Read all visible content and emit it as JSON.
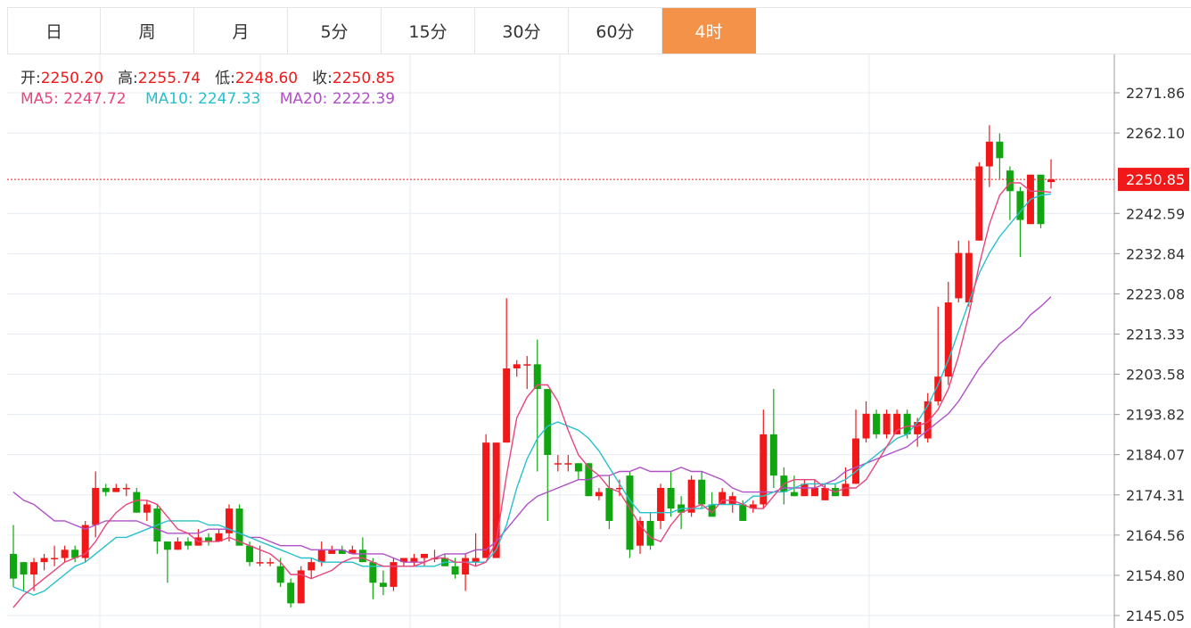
{
  "tabs": [
    {
      "label": "日",
      "active": false
    },
    {
      "label": "周",
      "active": false
    },
    {
      "label": "月",
      "active": false
    },
    {
      "label": "5分",
      "active": false
    },
    {
      "label": "15分",
      "active": false
    },
    {
      "label": "30分",
      "active": false
    },
    {
      "label": "60分",
      "active": false
    },
    {
      "label": "4时",
      "active": true
    }
  ],
  "info": {
    "open_label": "开:",
    "open": "2250.20",
    "high_label": "高:",
    "high": "2255.74",
    "low_label": "低:",
    "low": "2248.60",
    "close_label": "收:",
    "close": "2250.85",
    "ma5_label": "MA5:",
    "ma5": "2247.72",
    "ma10_label": "MA10:",
    "ma10": "2247.33",
    "ma20_label": "MA20:",
    "ma20": "2222.39"
  },
  "colors": {
    "up": "#f01818",
    "down": "#11a611",
    "ma5": "#e8457c",
    "ma10": "#28c0cc",
    "ma20": "#b04fc8",
    "grid": "#e6ecf2",
    "active_tab": "#f5924a",
    "price_tag": "#f01818"
  },
  "chart_data": {
    "type": "candlestick",
    "y_ticks": [
      "2271.86",
      "2262.10",
      "2242.59",
      "2232.84",
      "2223.08",
      "2213.33",
      "2203.58",
      "2193.82",
      "2184.07",
      "2174.31",
      "2164.56",
      "2154.80",
      "2145.05"
    ],
    "ylim": [
      2145.05,
      2276.0
    ],
    "current_price": "2250.85",
    "candles": [
      [
        2160,
        2154,
        2167,
        2152
      ],
      [
        2158,
        2155,
        2158,
        2151
      ],
      [
        2155,
        2158,
        2159,
        2151
      ],
      [
        2158,
        2159,
        2160,
        2156
      ],
      [
        2159,
        2159,
        2162,
        2157
      ],
      [
        2159,
        2161,
        2162,
        2158
      ],
      [
        2161,
        2159,
        2162,
        2158
      ],
      [
        2159,
        2167,
        2168,
        2158
      ],
      [
        2167,
        2176,
        2180,
        2164
      ],
      [
        2176,
        2175,
        2177,
        2174
      ],
      [
        2175,
        2176,
        2177,
        2175
      ],
      [
        2176,
        2176,
        2177,
        2174
      ],
      [
        2175,
        2170,
        2176,
        2170
      ],
      [
        2170,
        2172,
        2173,
        2168
      ],
      [
        2171,
        2163,
        2172,
        2160
      ],
      [
        2163,
        2161,
        2163,
        2153
      ],
      [
        2161,
        2163,
        2164,
        2161
      ],
      [
        2163,
        2162,
        2164,
        2161
      ],
      [
        2162,
        2164,
        2166,
        2162
      ],
      [
        2164,
        2163,
        2165,
        2162
      ],
      [
        2163,
        2165,
        2166,
        2163
      ],
      [
        2165,
        2171,
        2172,
        2163
      ],
      [
        2171,
        2162,
        2172,
        2162
      ],
      [
        2162,
        2158,
        2163,
        2157
      ],
      [
        2158,
        2158,
        2162,
        2157
      ],
      [
        2158,
        2158,
        2159,
        2157
      ],
      [
        2157,
        2153,
        2159,
        2152
      ],
      [
        2153,
        2148,
        2154,
        2147
      ],
      [
        2148,
        2156,
        2157,
        2148
      ],
      [
        2156,
        2158,
        2159,
        2154
      ],
      [
        2158,
        2161,
        2163,
        2157
      ],
      [
        2160,
        2161,
        2162,
        2160
      ],
      [
        2161,
        2160,
        2162,
        2160
      ],
      [
        2160,
        2161,
        2162,
        2160
      ],
      [
        2161,
        2158,
        2164,
        2158
      ],
      [
        2158,
        2153,
        2159,
        2149
      ],
      [
        2153,
        2152,
        2156,
        2150
      ],
      [
        2152,
        2158,
        2159,
        2151
      ],
      [
        2158,
        2159,
        2159,
        2157
      ],
      [
        2158,
        2159,
        2160,
        2157
      ],
      [
        2159,
        2160,
        2160,
        2157
      ],
      [
        2159,
        2159,
        2161,
        2158
      ],
      [
        2159,
        2157,
        2160,
        2157
      ],
      [
        2157,
        2155,
        2159,
        2154
      ],
      [
        2155,
        2159,
        2160,
        2151
      ],
      [
        2158,
        2159,
        2165,
        2157
      ],
      [
        2159,
        2187,
        2189,
        2159
      ],
      [
        2159,
        2187,
        2187,
        2159
      ],
      [
        2187,
        2205,
        2222,
        2187
      ],
      [
        2205,
        2206,
        2207,
        2203
      ],
      [
        2206,
        2206,
        2208,
        2200
      ],
      [
        2206,
        2200,
        2212,
        2180
      ],
      [
        2200,
        2184,
        2200,
        2168
      ],
      [
        2182,
        2182,
        2184,
        2180
      ],
      [
        2182,
        2182,
        2184,
        2180
      ],
      [
        2182,
        2180,
        2182,
        2178
      ],
      [
        2182,
        2174,
        2182,
        2174
      ],
      [
        2174,
        2175,
        2176,
        2173
      ],
      [
        2176,
        2168,
        2179,
        2166
      ],
      [
        2176,
        2176,
        2178,
        2174
      ],
      [
        2179,
        2161,
        2180,
        2159
      ],
      [
        2162,
        2168,
        2169,
        2160
      ],
      [
        2168,
        2162,
        2170,
        2161
      ],
      [
        2168,
        2176,
        2177,
        2166
      ],
      [
        2176,
        2171,
        2180,
        2169
      ],
      [
        2172,
        2170,
        2174,
        2166
      ],
      [
        2170,
        2178,
        2179,
        2169
      ],
      [
        2178,
        2172,
        2180,
        2171
      ],
      [
        2172,
        2169,
        2175,
        2172
      ],
      [
        2172,
        2175,
        2176,
        2172
      ],
      [
        2172,
        2174,
        2175,
        2170
      ],
      [
        2172,
        2168,
        2173,
        2168
      ],
      [
        2171,
        2172,
        2173,
        2170
      ],
      [
        2172,
        2189,
        2195,
        2171
      ],
      [
        2189,
        2179,
        2200,
        2176
      ],
      [
        2179,
        2175,
        2181,
        2172
      ],
      [
        2175,
        2174,
        2179,
        2174
      ],
      [
        2174,
        2177,
        2178,
        2174
      ],
      [
        2174,
        2176,
        2178,
        2174
      ],
      [
        2173,
        2176,
        2177,
        2173
      ],
      [
        2176,
        2174,
        2177,
        2174
      ],
      [
        2174,
        2177,
        2181,
        2174
      ],
      [
        2177,
        2188,
        2195,
        2177
      ],
      [
        2188,
        2194,
        2197,
        2187
      ],
      [
        2194,
        2189,
        2195,
        2188
      ],
      [
        2189,
        2194,
        2195,
        2188
      ],
      [
        2189,
        2194,
        2195,
        2189
      ],
      [
        2194,
        2189,
        2195,
        2188
      ],
      [
        2189,
        2192,
        2193,
        2186
      ],
      [
        2188,
        2197,
        2199,
        2187
      ],
      [
        2197,
        2203,
        2220,
        2196
      ],
      [
        2203,
        2221,
        2226,
        2201
      ],
      [
        2222,
        2233,
        2236,
        2221
      ],
      [
        2221,
        2233,
        2236,
        2220
      ],
      [
        2236,
        2254,
        2255,
        2236
      ],
      [
        2254,
        2260,
        2264,
        2249
      ],
      [
        2260,
        2256,
        2262,
        2251
      ],
      [
        2253,
        2248,
        2254,
        2241
      ],
      [
        2248,
        2241,
        2249,
        2232
      ],
      [
        2240,
        2252,
        2252,
        2240
      ],
      [
        2252,
        2240,
        2252,
        2239
      ],
      [
        2250.2,
        2250.85,
        2255.74,
        2248.6
      ]
    ],
    "ma5": [
      2147,
      2150,
      2152,
      2154,
      2156,
      2158,
      2159,
      2160,
      2163,
      2167,
      2170,
      2172,
      2173,
      2173,
      2172,
      2169,
      2166,
      2165,
      2163,
      2163,
      2163,
      2164,
      2163,
      2162,
      2161,
      2160,
      2158,
      2155,
      2155,
      2154,
      2155,
      2156,
      2158,
      2159,
      2159,
      2158,
      2157,
      2157,
      2157,
      2157,
      2158,
      2159,
      2159,
      2158,
      2158,
      2157,
      2158,
      2163,
      2179,
      2193,
      2198,
      2201,
      2201,
      2197,
      2190,
      2184,
      2181,
      2179,
      2176,
      2175,
      2171,
      2167,
      2164,
      2163,
      2167,
      2170,
      2171,
      2172,
      2170,
      2173,
      2173,
      2172,
      2171,
      2171,
      2174,
      2177,
      2178,
      2178,
      2178,
      2176,
      2175,
      2176,
      2176,
      2178,
      2182,
      2186,
      2190,
      2191,
      2191,
      2192,
      2195,
      2200,
      2208,
      2218,
      2230,
      2240,
      2247,
      2250,
      2250,
      2248,
      2248,
      2247.72
    ],
    "ma10": [
      2152,
      2151,
      2150,
      2151,
      2153,
      2155,
      2157,
      2158,
      2160,
      2162,
      2164,
      2164,
      2165,
      2166,
      2167,
      2168,
      2168,
      2168,
      2168,
      2167,
      2167,
      2166,
      2165,
      2164,
      2163,
      2162,
      2161,
      2160,
      2159,
      2159,
      2158,
      2158,
      2158,
      2158,
      2157,
      2157,
      2157,
      2157,
      2157,
      2157,
      2157,
      2157,
      2158,
      2158,
      2158,
      2158,
      2158,
      2161,
      2167,
      2176,
      2183,
      2188,
      2191,
      2192,
      2191,
      2190,
      2188,
      2185,
      2181,
      2177,
      2173,
      2170,
      2170,
      2170,
      2170,
      2171,
      2171,
      2171,
      2172,
      2172,
      2172,
      2172,
      2174,
      2174,
      2175,
      2175,
      2176,
      2177,
      2177,
      2177,
      2177,
      2178,
      2180,
      2182,
      2184,
      2186,
      2188,
      2189,
      2192,
      2196,
      2201,
      2207,
      2214,
      2221,
      2228,
      2233,
      2237,
      2240,
      2243,
      2246,
      2247,
      2247.33
    ],
    "ma20": [
      2175,
      2173,
      2172,
      2170,
      2168,
      2168,
      2167,
      2166,
      2167,
      2168,
      2168,
      2168,
      2168,
      2167,
      2166,
      2165,
      2165,
      2165,
      2165,
      2166,
      2166,
      2166,
      2165,
      2164,
      2164,
      2163,
      2162,
      2162,
      2162,
      2161,
      2161,
      2161,
      2161,
      2160,
      2160,
      2160,
      2160,
      2159,
      2158,
      2158,
      2158,
      2159,
      2160,
      2160,
      2160,
      2161,
      2161,
      2163,
      2166,
      2169,
      2172,
      2174,
      2175,
      2176,
      2177,
      2178,
      2178,
      2179,
      2179,
      2180,
      2180,
      2181,
      2180,
      2180,
      2180,
      2181,
      2180,
      2180,
      2179,
      2178,
      2176,
      2175,
      2175,
      2175,
      2175,
      2176,
      2176,
      2176,
      2176,
      2177,
      2178,
      2180,
      2181,
      2182,
      2183,
      2184,
      2185,
      2186,
      2188,
      2190,
      2192,
      2194,
      2197,
      2201,
      2205,
      2208,
      2211,
      2213,
      2215,
      2218,
      2220,
      2222.39
    ]
  }
}
